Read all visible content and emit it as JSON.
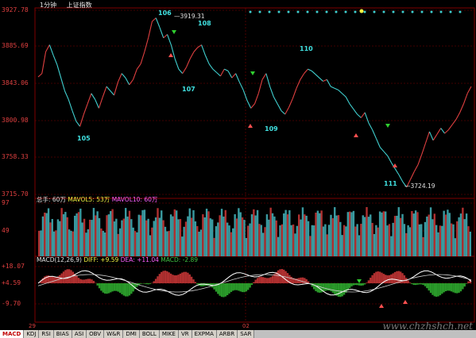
{
  "header": {
    "period": "1分钟",
    "index_name": "上证指数"
  },
  "main_panel": {
    "y_labels": [
      "3927.78",
      "3885.69",
      "3843.06",
      "3800.98",
      "3758.33",
      "3715.70"
    ],
    "high_label": "3919.31",
    "low_label": "3724.19",
    "wave_labels": [
      "105",
      "106",
      "107",
      "108",
      "109",
      "110",
      "111"
    ]
  },
  "volume_panel": {
    "legend": {
      "main": "总手: 60万",
      "mavol5": "MAVOL5: 53万",
      "mavol10": "MAVOL10: 60万"
    },
    "y_labels": [
      "97",
      "49"
    ]
  },
  "macd_panel": {
    "legend": {
      "name": "MACD(12,26,9)",
      "diff": "DIFF: +9.59",
      "dea": "DEA: +11.04",
      "macd": "MACD: -2.89"
    },
    "y_labels": [
      "+18.07",
      "+4.59",
      "-9.70"
    ]
  },
  "x_labels": [
    "29",
    "02"
  ],
  "tabs": [
    "MACD",
    "KDJ",
    "RSI",
    "BIAS",
    "ASI",
    "OBV",
    "W&R",
    "DMI",
    "BOLL",
    "MIKE",
    "VR",
    "EXPMA",
    "ARBR",
    "SAR"
  ],
  "active_tab": "MACD",
  "watermark": "www.chzhshch.net",
  "colors": {
    "background": "#000000",
    "grid": "#800000",
    "price_up": "#e04040",
    "price_down": "#40d0d0",
    "label_text": "#e04040",
    "macd_neg": "#2a9a2a",
    "macd_pos": "#b03030"
  },
  "chart_data": {
    "type": "line",
    "price_series": [
      3851,
      3855,
      3880,
      3888,
      3876,
      3865,
      3850,
      3835,
      3825,
      3812,
      3800,
      3794,
      3808,
      3820,
      3832,
      3825,
      3815,
      3828,
      3840,
      3835,
      3830,
      3845,
      3855,
      3850,
      3842,
      3848,
      3860,
      3866,
      3880,
      3896,
      3915,
      3919,
      3908,
      3896,
      3900,
      3888,
      3872,
      3860,
      3855,
      3862,
      3872,
      3880,
      3885,
      3888,
      3876,
      3866,
      3860,
      3856,
      3852,
      3860,
      3858,
      3850,
      3855,
      3845,
      3836,
      3824,
      3815,
      3820,
      3832,
      3848,
      3855,
      3840,
      3828,
      3820,
      3812,
      3808,
      3816,
      3826,
      3838,
      3848,
      3855,
      3860,
      3858,
      3854,
      3850,
      3846,
      3848,
      3840,
      3838,
      3836,
      3832,
      3828,
      3820,
      3814,
      3808,
      3804,
      3810,
      3798,
      3790,
      3780,
      3770,
      3765,
      3760,
      3752,
      3745,
      3738,
      3730,
      3724,
      3733,
      3742,
      3750,
      3762,
      3775,
      3788,
      3778,
      3785,
      3792,
      3786,
      3790,
      3796,
      3802,
      3810,
      3820,
      3832,
      3840
    ]
  }
}
